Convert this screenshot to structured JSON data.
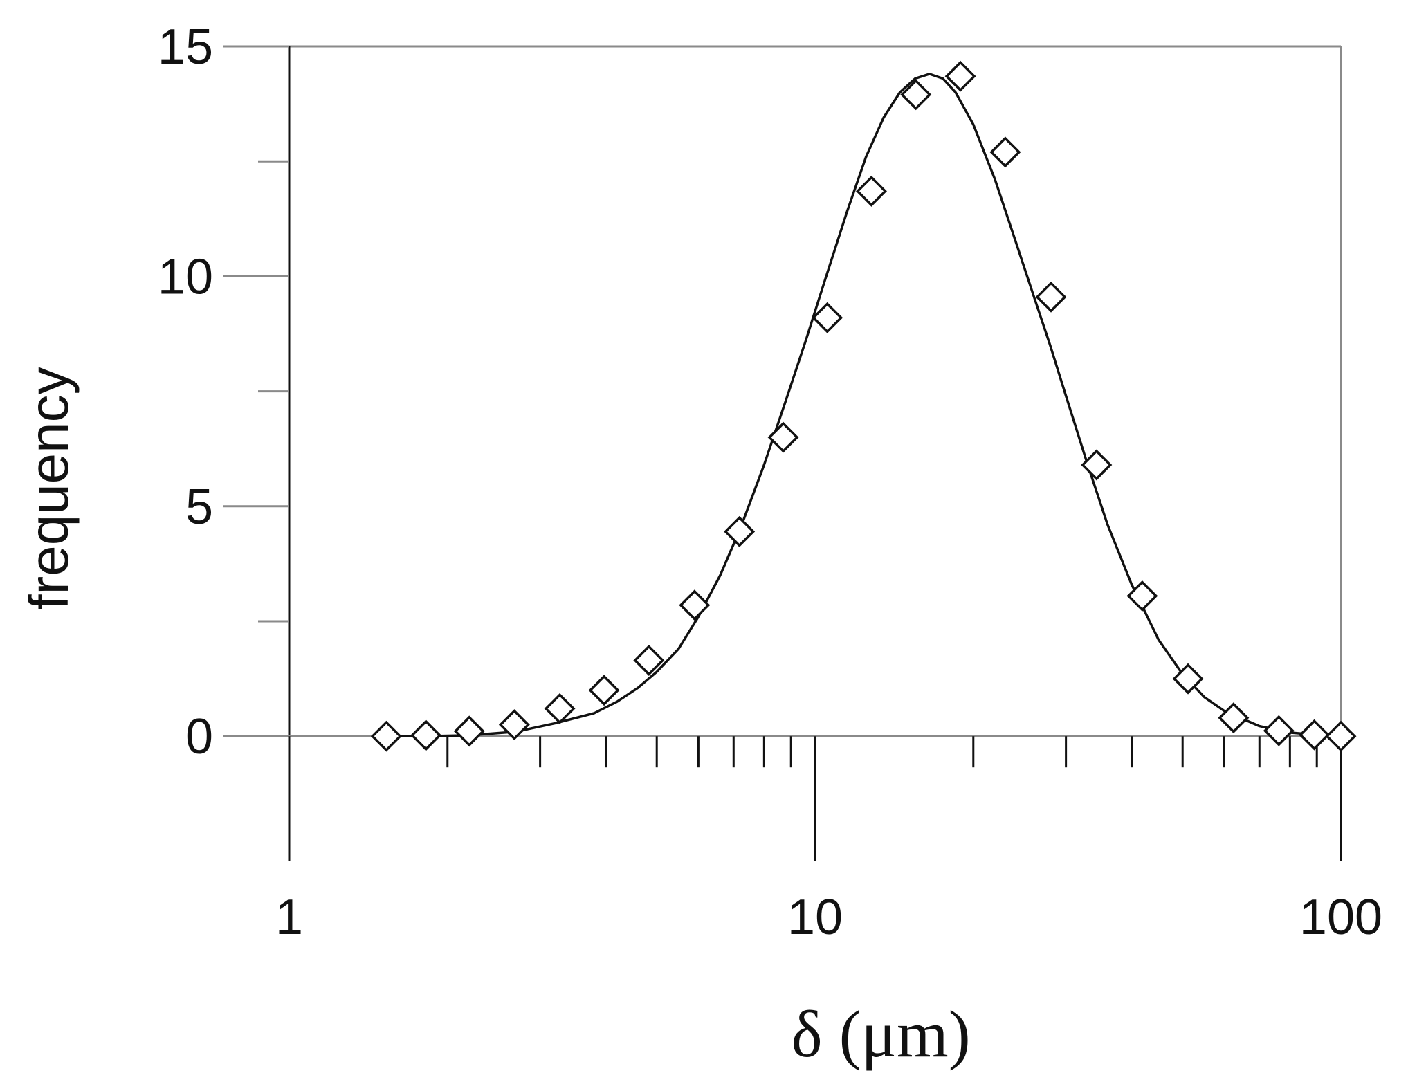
{
  "chart_data": {
    "type": "scatter",
    "xlabel": "δ (μm)",
    "ylabel": "frequency",
    "xscale": "log",
    "xlim": [
      1,
      100
    ],
    "ylim": [
      0,
      15
    ],
    "grid": false,
    "x_tick_labels": [
      "1",
      "10",
      "100"
    ],
    "y_tick_labels": [
      "0",
      "5",
      "10",
      "15"
    ],
    "series": [
      {
        "marker": "open-diamond",
        "x": [
          1.53,
          1.82,
          2.2,
          2.68,
          3.27,
          3.97,
          4.83,
          5.9,
          7.18,
          8.7,
          10.55,
          12.8,
          15.55,
          18.9,
          23.0,
          28.1,
          34.3,
          41.9,
          51.2,
          62.5,
          76.2,
          89.0,
          100.0
        ],
        "y": [
          0.0,
          0.02,
          0.11,
          0.25,
          0.6,
          1.0,
          1.65,
          2.85,
          4.45,
          6.5,
          9.1,
          11.85,
          13.95,
          14.35,
          12.7,
          9.55,
          5.9,
          3.05,
          1.25,
          0.4,
          0.12,
          0.03,
          0.0
        ]
      },
      {
        "style": "solid-line",
        "x": [
          1.5,
          1.8,
          2.2,
          2.7,
          3.2,
          3.8,
          4.2,
          4.6,
          5.0,
          5.5,
          6.0,
          6.6,
          7.2,
          8.0,
          8.8,
          9.6,
          10.5,
          11.5,
          12.5,
          13.5,
          14.5,
          15.5,
          16.5,
          17.5,
          18.5,
          20.0,
          22.0,
          24.0,
          26.0,
          28.0,
          30.0,
          33.0,
          36.0,
          40.0,
          45.0,
          50.0,
          55.0,
          60.0,
          70.0,
          80.0,
          90.0,
          100.0
        ],
        "y": [
          0.0,
          0.0,
          0.02,
          0.1,
          0.28,
          0.5,
          0.75,
          1.05,
          1.4,
          1.9,
          2.6,
          3.5,
          4.5,
          5.9,
          7.3,
          8.6,
          10.0,
          11.4,
          12.6,
          13.45,
          14.0,
          14.3,
          14.4,
          14.3,
          14.0,
          13.3,
          12.1,
          10.8,
          9.6,
          8.5,
          7.4,
          5.9,
          4.6,
          3.3,
          2.1,
          1.35,
          0.85,
          0.55,
          0.22,
          0.08,
          0.03,
          0.01
        ]
      }
    ]
  }
}
